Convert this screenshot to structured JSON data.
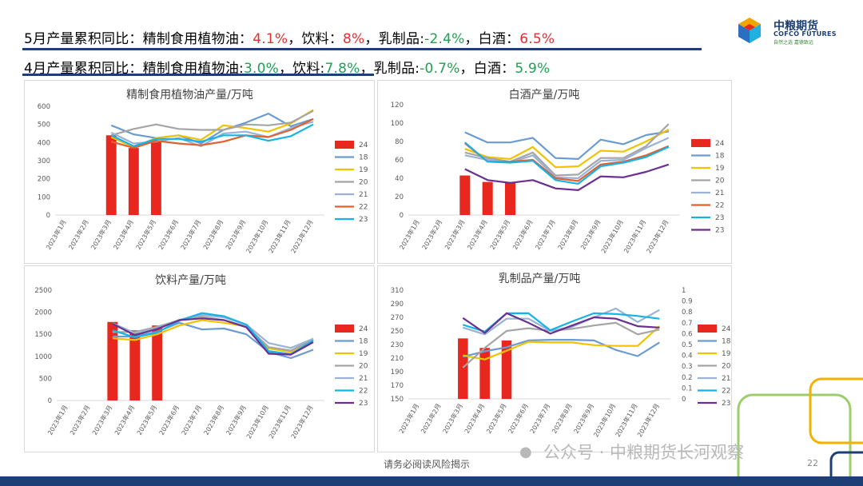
{
  "header": {
    "line1": {
      "prefix": "5月产量累积同比：精制食用植物油：",
      "oil": "4.1%",
      "sep1": "，饮料：",
      "drink": "8%",
      "sep2": "，乳制品:",
      "dairy": "-2.4%",
      "sep3": "，白酒：",
      "liquor": "6.5%"
    },
    "line2": {
      "prefix": "4月产量累积同比：精制食用植物油:",
      "oil": "3.0%",
      "sep1": "，饮料:",
      "drink": "7.8%",
      "sep2": "，乳制品:",
      "dairy": "-0.7%",
      "sep3": "，白酒：",
      "liquor": "5.9%"
    }
  },
  "logo": {
    "name": "中粮期货",
    "english": "COFCO FUTURES",
    "slogan": "自然之选 嘉德致远"
  },
  "footer": {
    "note": "请务必阅读风险揭示",
    "watermark": "公众号 · 中粮期货长河观察",
    "page": "22"
  },
  "colors": {
    "s24": "#e8271f",
    "s18": "#6a9bd1",
    "s19": "#f2c200",
    "s20": "#a5a5a5",
    "s21": "#9ab3d5",
    "s22": "#e06030",
    "s23": "#16b3e6",
    "s23b": "#6a2f91",
    "header_rule": "#1e3f75"
  },
  "chart_data": [
    {
      "id": "oil",
      "type": "bar+line",
      "title": "精制食用植物油产量/万吨",
      "categories": [
        "2023年1月",
        "2023年2月",
        "2023年3月",
        "2023年4月",
        "2023年5月",
        "2023年6月",
        "2023年7月",
        "2023年8月",
        "2023年9月",
        "2023年10月",
        "2023年11月",
        "2023年12月"
      ],
      "ylim": [
        0,
        600
      ],
      "yticks": [
        0,
        100,
        200,
        300,
        400,
        500,
        600
      ],
      "bar_series": {
        "name": "24",
        "values": [
          null,
          null,
          440,
          370,
          410,
          null,
          null,
          null,
          null,
          null,
          null,
          null
        ]
      },
      "series": [
        {
          "name": "18",
          "color": "#6a9bd1",
          "values": [
            null,
            null,
            495,
            445,
            425,
            440,
            395,
            470,
            510,
            560,
            490,
            530
          ]
        },
        {
          "name": "19",
          "color": "#f2c200",
          "values": [
            null,
            null,
            430,
            375,
            425,
            440,
            415,
            495,
            480,
            460,
            505,
            580
          ]
        },
        {
          "name": "20",
          "color": "#a5a5a5",
          "values": [
            null,
            null,
            440,
            475,
            500,
            475,
            470,
            470,
            500,
            495,
            510,
            575
          ]
        },
        {
          "name": "21",
          "color": "#9ab3d5",
          "values": [
            null,
            null,
            455,
            395,
            405,
            425,
            380,
            450,
            460,
            430,
            480,
            515
          ]
        },
        {
          "name": "22",
          "color": "#e06030",
          "values": [
            null,
            null,
            405,
            370,
            410,
            395,
            385,
            405,
            440,
            430,
            470,
            530
          ]
        },
        {
          "name": "23",
          "color": "#16b3e6",
          "values": [
            null,
            null,
            440,
            380,
            420,
            420,
            405,
            440,
            440,
            410,
            435,
            500
          ]
        }
      ],
      "ytick_labels": [
        "0",
        "100",
        "200",
        "300",
        "400",
        "500",
        "600"
      ]
    },
    {
      "id": "liquor",
      "type": "bar+line",
      "title": "白酒产量/万吨",
      "categories": [
        "2023年1月",
        "2023年2月",
        "2023年3月",
        "2023年4月",
        "2023年5月",
        "2023年6月",
        "2023年7月",
        "2023年8月",
        "2023年9月",
        "2023年10月",
        "2023年11月",
        "2023年12月"
      ],
      "ylim": [
        0,
        120
      ],
      "yticks": [
        0,
        20,
        40,
        60,
        80,
        100,
        120
      ],
      "bar_series": {
        "name": "24",
        "values": [
          null,
          null,
          43,
          36,
          36,
          null,
          null,
          null,
          null,
          null,
          null,
          null
        ]
      },
      "series": [
        {
          "name": "18",
          "color": "#6a9bd1",
          "values": [
            null,
            null,
            90,
            79,
            79,
            84,
            62,
            61,
            82,
            77,
            87,
            91
          ]
        },
        {
          "name": "19",
          "color": "#f2c200",
          "values": [
            null,
            null,
            72,
            63,
            61,
            74,
            52,
            53,
            70,
            69,
            80,
            93
          ]
        },
        {
          "name": "20",
          "color": "#a5a5a5",
          "values": [
            null,
            null,
            68,
            62,
            58,
            68,
            43,
            44,
            62,
            62,
            75,
            99
          ]
        },
        {
          "name": "21",
          "color": "#9ab3d5",
          "values": [
            null,
            null,
            65,
            60,
            57,
            65,
            41,
            40,
            59,
            60,
            73,
            84
          ]
        },
        {
          "name": "22",
          "color": "#e06030",
          "values": [
            null,
            null,
            78,
            58,
            58,
            60,
            40,
            37,
            55,
            58,
            65,
            75
          ]
        },
        {
          "name": "23",
          "color": "#16b3e6",
          "values": [
            null,
            null,
            79,
            58,
            57,
            59,
            38,
            34,
            53,
            57,
            63,
            74
          ]
        },
        {
          "name": "23",
          "color": "#6a2f91",
          "values": [
            null,
            null,
            50,
            38,
            35,
            38,
            29,
            27,
            42,
            41,
            47,
            55
          ]
        }
      ],
      "ytick_labels": [
        "0",
        "20",
        "40",
        "60",
        "80",
        "100",
        "120"
      ]
    },
    {
      "id": "drink",
      "type": "bar+line",
      "title": "饮料产量/万吨",
      "categories": [
        "2023年1月",
        "2023年2月",
        "2023年3月",
        "2023年4月",
        "2023年5月",
        "2023年6月",
        "2023年7月",
        "2023年8月",
        "2023年9月",
        "2023年10月",
        "2023年11月",
        "2023年12月"
      ],
      "ylim": [
        0,
        2500
      ],
      "yticks": [
        0,
        500,
        1000,
        1500,
        2000,
        2500
      ],
      "bar_series": {
        "name": "24",
        "values": [
          null,
          null,
          1780,
          1590,
          1700,
          null,
          null,
          null,
          null,
          null,
          null,
          null
        ]
      },
      "series": [
        {
          "name": "18",
          "color": "#6a9bd1",
          "values": [
            null,
            null,
            1450,
            1450,
            1560,
            1760,
            1610,
            1630,
            1500,
            1100,
            960,
            1150
          ]
        },
        {
          "name": "19",
          "color": "#f2c200",
          "values": [
            null,
            null,
            1410,
            1370,
            1500,
            1700,
            1820,
            1760,
            1680,
            1180,
            1100,
            1380
          ]
        },
        {
          "name": "20",
          "color": "#a5a5a5",
          "values": [
            null,
            null,
            1550,
            1550,
            1670,
            1820,
            1900,
            1820,
            1680,
            1210,
            1130,
            1380
          ]
        },
        {
          "name": "21",
          "color": "#9ab3d5",
          "values": [
            null,
            null,
            1750,
            1530,
            1630,
            1830,
            1940,
            1880,
            1720,
            1300,
            1190,
            1400
          ]
        },
        {
          "name": "22",
          "color": "#16b3e6",
          "values": [
            null,
            null,
            1590,
            1430,
            1540,
            1810,
            1980,
            1910,
            1720,
            1120,
            1050,
            1360
          ]
        },
        {
          "name": "23",
          "color": "#6a2f91",
          "values": [
            null,
            null,
            1740,
            1480,
            1620,
            1820,
            1860,
            1820,
            1660,
            1060,
            1040,
            1320
          ]
        }
      ],
      "ytick_labels": [
        "0",
        "500",
        "1000",
        "1500",
        "2000",
        "2500"
      ]
    },
    {
      "id": "dairy",
      "type": "bar+line",
      "title": "乳制品产量/万吨",
      "categories": [
        "2023年1月",
        "2023年2月",
        "2023年3月",
        "2023年4月",
        "2023年5月",
        "2023年6月",
        "2023年7月",
        "2023年8月",
        "2023年9月",
        "2023年10月",
        "2023年11月",
        "2023年12月"
      ],
      "ylim": [
        150,
        310
      ],
      "yticks": [
        150,
        170,
        190,
        210,
        230,
        250,
        270,
        290,
        310
      ],
      "y2lim": [
        0,
        1
      ],
      "y2ticks": [
        "0",
        "0.1",
        "0.2",
        "0.3",
        "0.4",
        "0.5",
        "0.6",
        "0.7",
        "0.8",
        "0.9",
        "1"
      ],
      "bar_series": {
        "name": "24",
        "values": [
          null,
          null,
          239,
          225,
          236,
          null,
          null,
          null,
          null,
          null,
          null,
          null
        ]
      },
      "series": [
        {
          "name": "18",
          "color": "#6a9bd1",
          "values": [
            null,
            null,
            212,
            220,
            226,
            236,
            237,
            237,
            236,
            222,
            213,
            233
          ]
        },
        {
          "name": "19",
          "color": "#f2c200",
          "values": [
            null,
            null,
            214,
            208,
            221,
            234,
            233,
            233,
            229,
            228,
            228,
            257
          ]
        },
        {
          "name": "20",
          "color": "#a5a5a5",
          "values": [
            null,
            null,
            196,
            225,
            250,
            254,
            250,
            253,
            258,
            262,
            245,
            252
          ]
        },
        {
          "name": "21",
          "color": "#9ab3d5",
          "values": [
            null,
            null,
            255,
            245,
            268,
            268,
            250,
            256,
            270,
            283,
            263,
            281
          ]
        },
        {
          "name": "22",
          "color": "#16b3e6",
          "values": [
            null,
            null,
            259,
            249,
            276,
            276,
            251,
            264,
            276,
            275,
            272,
            268
          ]
        },
        {
          "name": "23",
          "color": "#6a2f91",
          "values": [
            null,
            null,
            269,
            247,
            276,
            262,
            246,
            258,
            270,
            268,
            257,
            255
          ]
        }
      ],
      "ytick_labels": [
        "150",
        "170",
        "190",
        "210",
        "230",
        "250",
        "270",
        "290",
        "310"
      ]
    }
  ]
}
